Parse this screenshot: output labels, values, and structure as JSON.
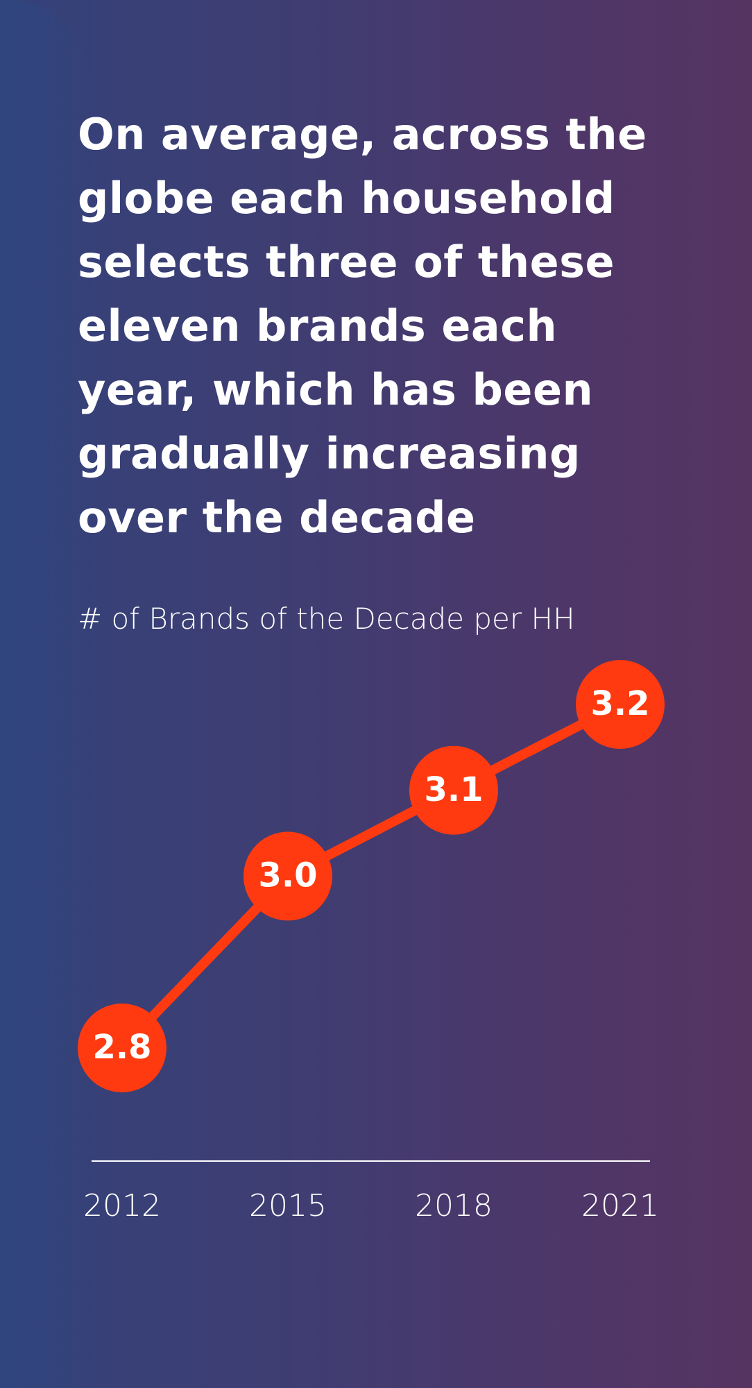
{
  "headline": "On average, across the globe each household selects three of these eleven brands each year, which has been gradually increasing over the decade",
  "colors": {
    "line": "#ff3a10",
    "marker": "#ff3a10",
    "marker_text": "#ffffff",
    "axis": "#ffffff",
    "text": "#ffffff",
    "background_left": "#33427a",
    "background_right": "#563462"
  },
  "chart_data": {
    "type": "line",
    "title": "# of Brands of the Decade per HH",
    "categories": [
      "2012",
      "2015",
      "2018",
      "2021"
    ],
    "values": [
      2.8,
      3.0,
      3.1,
      3.2
    ],
    "value_labels": [
      "2.8",
      "3.0",
      "3.1",
      "3.2"
    ],
    "xlabel": "",
    "ylabel": "",
    "grid": false,
    "legend": "none"
  }
}
